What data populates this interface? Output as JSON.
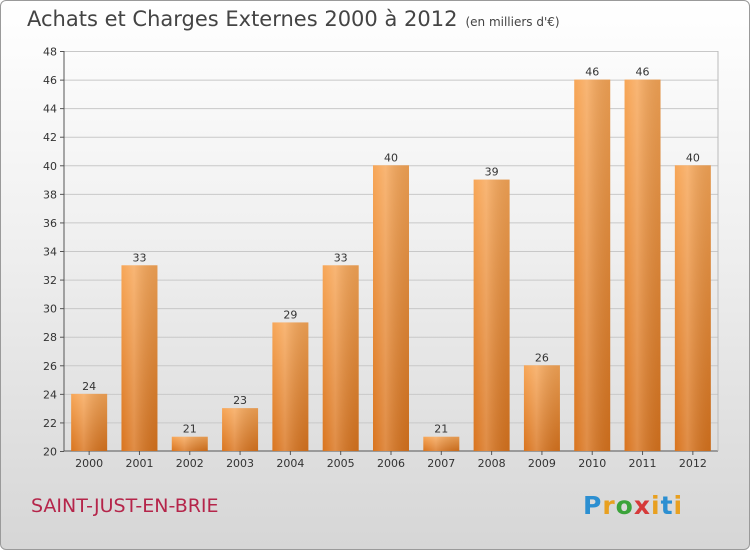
{
  "header": {
    "title": "Achats et Charges Externes 2000 à 2012",
    "subtitle": "(en milliers d'€)"
  },
  "footer": {
    "commune": "SAINT-JUST-EN-BRIE",
    "logo": "Proxiti"
  },
  "colors": {
    "bar_top": "#f7a657",
    "bar_bottom": "#d9741e"
  },
  "chart_data": {
    "type": "bar",
    "title": "Achats et Charges Externes 2000 à 2012",
    "subtitle": "(en milliers d'€)",
    "categories": [
      "2000",
      "2001",
      "2002",
      "2003",
      "2004",
      "2005",
      "2006",
      "2007",
      "2008",
      "2009",
      "2010",
      "2011",
      "2012"
    ],
    "values": [
      24,
      33,
      21,
      23,
      29,
      33,
      40,
      21,
      39,
      26,
      46,
      46,
      40
    ],
    "ylim": [
      20,
      48
    ],
    "yticks": [
      20,
      22,
      24,
      26,
      28,
      30,
      32,
      34,
      36,
      38,
      40,
      42,
      44,
      46,
      48
    ],
    "grid": true,
    "legend": "none"
  }
}
